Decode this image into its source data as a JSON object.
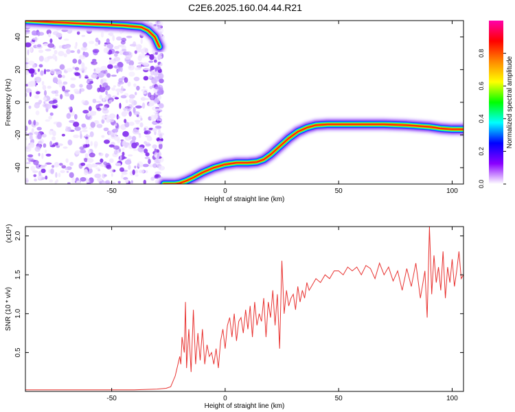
{
  "title": "C2E6.2025.160.04.44.R21",
  "chart_data": [
    {
      "type": "heatmap",
      "xlabel": "Height of straight line (km)",
      "ylabel": "Frequency (Hz)",
      "xlim": [
        -88,
        105
      ],
      "ylim": [
        -50,
        50
      ],
      "x_ticks": [
        -50,
        0,
        50,
        100
      ],
      "y_ticks": [
        -40,
        -20,
        0,
        20,
        40
      ],
      "noise_region_x": [
        -88,
        -28
      ],
      "ridge": {
        "x": [
          -88,
          -75,
          -60,
          -45,
          -37,
          -34,
          -31,
          -29,
          -27,
          -25,
          -22,
          -20,
          -17,
          -14,
          -10,
          -5,
          0,
          5,
          10,
          14,
          17,
          20,
          24,
          28,
          32,
          36,
          40,
          45,
          50,
          60,
          70,
          80,
          90,
          95,
          100,
          105
        ],
        "freq": [
          50,
          49,
          48,
          47,
          46,
          44,
          40,
          34,
          -50,
          -50,
          -50,
          -49.5,
          -48,
          -46,
          -43,
          -40,
          -38,
          -37,
          -37,
          -36.5,
          -35,
          -32,
          -27,
          -22,
          -18,
          -15.5,
          -14,
          -13.5,
          -13.5,
          -13.5,
          -13.5,
          -14,
          -15,
          -16,
          -16.5,
          -16.5
        ]
      },
      "colorbar": {
        "label": "Normalized spectral amplitude",
        "range": [
          0,
          1
        ],
        "ticks": [
          "0.0",
          "0.2",
          "0.4",
          "0.6",
          "0.8"
        ],
        "colors": [
          "#ffffff",
          "#8a00ff",
          "#0000ff",
          "#00ffff",
          "#00ff00",
          "#ffff00",
          "#ff8800",
          "#ff0000",
          "#ff00aa"
        ]
      }
    },
    {
      "type": "line",
      "xlabel": "Height of straight line (km)",
      "ylabel": "SNR (10 * v/v)",
      "y_multiplier": "(x10⁴)",
      "xlim": [
        -88,
        105
      ],
      "ylim": [
        0,
        2.12
      ],
      "x_ticks": [
        -50,
        0,
        50,
        100
      ],
      "y_ticks": [
        0.5,
        1.0,
        1.5,
        2.0
      ],
      "y_tick_labels": [
        "0.5",
        "1.0",
        "1.5",
        "2.0"
      ],
      "color": "#e8312f",
      "series": [
        {
          "x": [
            -88,
            -60,
            -40,
            -30,
            -26,
            -24,
            -22,
            -20,
            -19.5,
            -19,
            -18,
            -17.5,
            -17,
            -16,
            -15,
            -14,
            -13,
            -12,
            -11,
            -10,
            -9,
            -8,
            -7,
            -6,
            -5,
            -4,
            -3,
            -2,
            -1,
            0,
            1,
            2,
            3,
            4,
            5,
            6,
            7,
            8,
            9,
            10,
            11,
            12,
            13,
            14,
            15,
            16,
            17,
            18,
            19,
            20,
            21,
            22,
            23,
            24,
            25,
            26,
            27,
            28,
            29,
            30,
            31,
            32,
            33,
            34,
            35,
            36,
            37,
            38,
            40,
            42,
            44,
            46,
            48,
            50,
            52,
            54,
            56,
            58,
            60,
            62,
            64,
            66,
            68,
            70,
            72,
            74,
            76,
            78,
            80,
            82,
            84,
            86,
            88,
            89,
            90,
            91,
            92,
            93,
            94,
            95,
            96,
            97,
            98,
            99,
            100,
            101,
            102,
            103,
            104,
            105
          ],
          "y": [
            0.02,
            0.02,
            0.02,
            0.03,
            0.04,
            0.06,
            0.2,
            0.45,
            0.35,
            0.7,
            0.5,
            1.15,
            0.3,
            0.8,
            0.25,
            1.05,
            0.35,
            0.75,
            0.4,
            0.8,
            0.35,
            0.6,
            0.45,
            0.5,
            0.35,
            0.55,
            0.3,
            0.65,
            0.8,
            0.55,
            0.85,
            0.95,
            0.7,
            1.0,
            0.65,
            0.9,
            0.95,
            0.75,
            1.05,
            0.8,
            1.1,
            0.7,
            1.15,
            0.85,
            1.0,
            0.9,
            1.2,
            0.7,
            1.15,
            0.95,
            1.3,
            0.85,
            1.25,
            0.55,
            1.68,
            1.0,
            1.3,
            1.1,
            1.2,
            1.25,
            1.05,
            1.35,
            1.15,
            1.3,
            1.2,
            1.4,
            1.3,
            1.35,
            1.45,
            1.4,
            1.5,
            1.45,
            1.55,
            1.55,
            1.5,
            1.6,
            1.55,
            1.6,
            1.5,
            1.62,
            1.58,
            1.45,
            1.65,
            1.5,
            1.6,
            1.42,
            1.55,
            1.3,
            1.58,
            1.35,
            1.65,
            1.2,
            1.55,
            0.95,
            2.12,
            1.25,
            1.75,
            1.4,
            1.6,
            1.3,
            1.8,
            1.2,
            1.6,
            1.4,
            1.7,
            1.35,
            1.55,
            1.8,
            1.45,
            1.5
          ]
        }
      ]
    }
  ]
}
